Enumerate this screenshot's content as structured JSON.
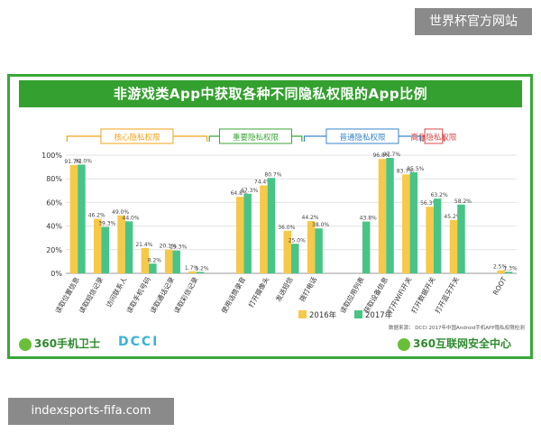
{
  "watermark_top": "世界杯官方网站",
  "watermark_bottom": "indexsports-fifa.com",
  "footer": {
    "left_logo": "360手机卫士",
    "middle_logo": "DCCI",
    "right_logo": "360互联网安全中心"
  },
  "chart_data": {
    "type": "bar",
    "title": "非游戏类App中获取各种不同隐私权限的App比例",
    "source_note": "数据来源： DCCI 2017年中国Android手机APP隐私权限检测",
    "y_ticks": [
      "0%",
      "20%",
      "40%",
      "60%",
      "80%",
      "100%"
    ],
    "ylim": [
      0,
      100
    ],
    "legend_position": "bottom-center",
    "colors": {
      "2016年": "#f7c948",
      "2017年": "#48c487"
    },
    "groups": [
      {
        "label": "核心隐私权限",
        "color": "#f2a31b",
        "start": 0,
        "end": 5
      },
      {
        "label": "重要隐私权限",
        "color": "#3aa73a",
        "start": 6,
        "end": 9
      },
      {
        "label": "普通隐私权限",
        "color": "#3a86c8",
        "start": 10,
        "end": 14
      },
      {
        "label": "高危隐私权限",
        "color": "#d84a4a",
        "start": 15,
        "end": 15
      }
    ],
    "categories": [
      "读取位置信息",
      "读取短信记录",
      "访问联系人",
      "读取手机号码",
      "读取通话记录",
      "读取彩信记录",
      "",
      "使用话筒录音",
      "打开摄像头",
      "发送短信",
      "拨打电话",
      "",
      "读取应用列表",
      "获取设备信息",
      "打开WiFi开关",
      "打开数据开关",
      "打开蓝牙开关",
      "",
      "ROOT"
    ],
    "series": [
      {
        "name": "2016年",
        "values": [
          91.7,
          46.2,
          49.0,
          21.4,
          20.1,
          1.7,
          null,
          64.8,
          74.4,
          36.0,
          44.2,
          null,
          null,
          96.8,
          83.7,
          56.3,
          45.2,
          null,
          2.5
        ],
        "labels": [
          "91.7%",
          "46.2%",
          "49.0%",
          "21.4%",
          "20.1%",
          "1.7%",
          "",
          "64.8%",
          "74.4%",
          "36.0%",
          "44.2%",
          "",
          "",
          "96.8%",
          "83.7%",
          "56.3%",
          "45.2%",
          "",
          "2.5%"
        ]
      },
      {
        "name": "2017年",
        "values": [
          92.0,
          39.3,
          44.0,
          8.2,
          19.3,
          1.2,
          null,
          67.3,
          80.7,
          25.0,
          38.0,
          null,
          43.8,
          97.7,
          85.5,
          63.2,
          58.2,
          null,
          1.3
        ],
        "labels": [
          "92.0%",
          "39.3%",
          "44.0%",
          "8.2%",
          "19.3%",
          "1.2%",
          "",
          "67.3%",
          "80.7%",
          "25.0%",
          "38.0%",
          "",
          "43.8%",
          "97.7%",
          "85.5%",
          "63.2%",
          "58.2%",
          "",
          "1.3%"
        ]
      }
    ]
  }
}
